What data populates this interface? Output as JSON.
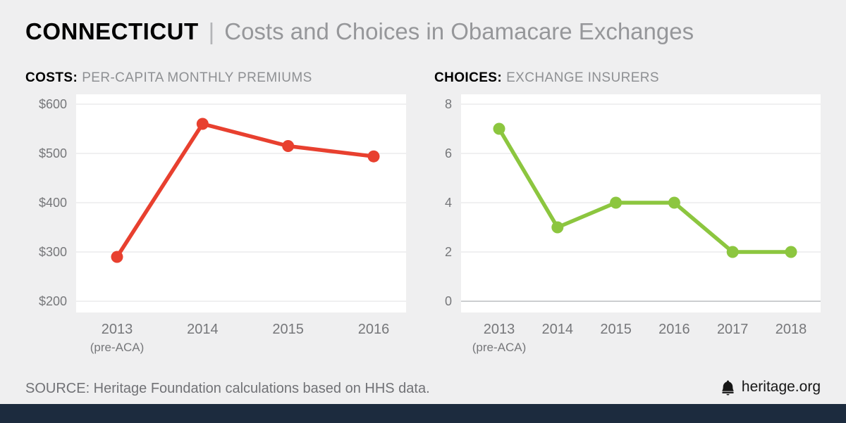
{
  "header": {
    "state": "CONNECTICUT",
    "divider": "|",
    "title": "Costs and Choices in Obamacare Exchanges"
  },
  "footer": {
    "source": "SOURCE: Heritage Foundation calculations based on HHS data.",
    "brand": "heritage.org"
  },
  "colors": {
    "background": "#efeff0",
    "panel": "#ffffff",
    "grid": "#e2e2e3",
    "baseline": "#bcbdc0",
    "axis_text": "#76777a",
    "costs_line": "#e8402f",
    "choices_line": "#8cc63f",
    "bottom_bar": "#1c2b3e",
    "brand_icon": "#161616"
  },
  "chart_data": [
    {
      "type": "line",
      "title_bold": "COSTS:",
      "title_rest": "PER-CAPITA MONTHLY PREMIUMS",
      "categories": [
        "2013",
        "2014",
        "2015",
        "2016"
      ],
      "x_sub_labels": [
        "(pre-ACA)",
        "",
        "",
        ""
      ],
      "values": [
        290,
        560,
        515,
        494
      ],
      "ylim": [
        200,
        600
      ],
      "yticks": [
        200,
        300,
        400,
        500,
        600
      ],
      "ytick_prefix": "$",
      "grid": true,
      "baseline": false,
      "legend": "none",
      "line_color": "#e8402f"
    },
    {
      "type": "line",
      "title_bold": "CHOICES:",
      "title_rest": "EXCHANGE INSURERS",
      "categories": [
        "2013",
        "2014",
        "2015",
        "2016",
        "2017",
        "2018"
      ],
      "x_sub_labels": [
        "(pre-ACA)",
        "",
        "",
        "",
        "",
        ""
      ],
      "values": [
        7,
        3,
        4,
        4,
        2,
        2
      ],
      "ylim": [
        0,
        8
      ],
      "yticks": [
        0,
        2,
        4,
        6,
        8
      ],
      "ytick_prefix": "",
      "grid": true,
      "baseline": true,
      "legend": "none",
      "line_color": "#8cc63f"
    }
  ]
}
